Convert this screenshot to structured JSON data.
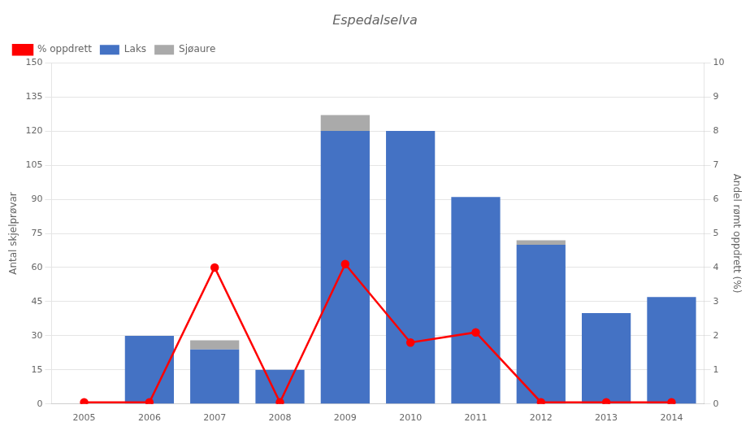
{
  "chart_data": {
    "type": "bar",
    "title": "Espedalselva",
    "categories": [
      "2005",
      "2006",
      "2007",
      "2008",
      "2009",
      "2010",
      "2011",
      "2012",
      "2013",
      "2014"
    ],
    "series": [
      {
        "name": "Laks",
        "color": "#4472C4",
        "values": [
          0,
          30,
          24,
          15,
          120,
          120,
          91,
          70,
          40,
          47
        ]
      },
      {
        "name": "Sjøaure",
        "color": "#AAAAAA",
        "values": [
          0,
          0,
          4,
          0,
          7,
          0,
          0,
          2,
          0,
          0
        ]
      },
      {
        "name": "% oppdrett",
        "type": "line",
        "axis": "y2",
        "color": "#FF0000",
        "marker": "circle",
        "line_style": "solid",
        "values": [
          0.05,
          0.05,
          4.0,
          0.05,
          4.1,
          1.8,
          2.1,
          0.05,
          0.05,
          0.05
        ]
      }
    ],
    "stacked": true,
    "ylabel": "Antal skjelprøvar",
    "y2label": "Andel rømt oppdrett (%)",
    "ylim": [
      0,
      150
    ],
    "yticks": [
      0,
      15,
      30,
      45,
      60,
      75,
      90,
      105,
      120,
      135,
      150
    ],
    "y2lim": [
      0,
      10
    ],
    "y2ticks": [
      0,
      1,
      2,
      3,
      4,
      5,
      6,
      7,
      8,
      9,
      10
    ],
    "grid": true,
    "legend": "upper left"
  }
}
